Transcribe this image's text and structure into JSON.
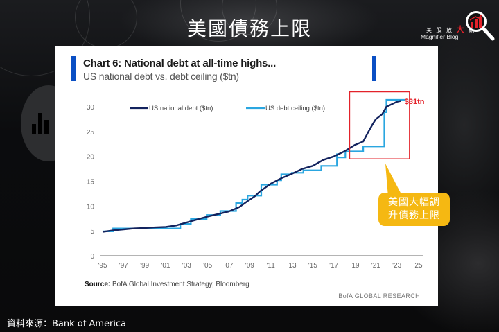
{
  "page": {
    "title": "美國債務上限",
    "footer_source": "資料來源：Bank of  America"
  },
  "logo": {
    "cn_text_pre": "美 股 放 ",
    "cn_text_big": "大",
    "cn_text_post": " 鏡",
    "en_text": "Magnifier Blog",
    "icon": "magnifier-bar-chart-icon",
    "colors": {
      "accent": "#e3222a",
      "ring": "#ffffff"
    }
  },
  "card": {
    "title": "Chart 6: National debt at all-time highs...",
    "subtitle": "US national debt vs. debt ceiling ($tn)",
    "source_label": "Source:",
    "source_text": " BofA Global Investment Strategy, Bloomberg",
    "brand": "BofA GLOBAL RESEARCH"
  },
  "callout": {
    "line1": "美國大幅調",
    "line2": "升債務上限",
    "color": "#f5b812"
  },
  "chart_data": {
    "type": "line",
    "title": "Chart 6: National debt at all-time highs...",
    "subtitle": "US national debt vs. debt ceiling ($tn)",
    "xlabel": "",
    "ylabel": "$tn",
    "xlim": [
      1995,
      2025
    ],
    "ylim": [
      0,
      30
    ],
    "grid": false,
    "legend_position": "top-left",
    "x_tick_labels": [
      "'95",
      "'97",
      "'99",
      "'01",
      "'03",
      "'05",
      "'07",
      "'09",
      "'11",
      "'13",
      "'15",
      "'17",
      "'19",
      "'21",
      "'23",
      "'25"
    ],
    "y_tick_labels": [
      "0",
      "5",
      "10",
      "15",
      "20",
      "25",
      "30"
    ],
    "y_ticks": [
      0,
      5,
      10,
      15,
      20,
      25,
      30
    ],
    "series": [
      {
        "name": "US national debt ($tn)",
        "color": "#13235e",
        "points": [
          [
            1995.0,
            4.8
          ],
          [
            1996.0,
            5.1
          ],
          [
            1997.0,
            5.3
          ],
          [
            1998.0,
            5.5
          ],
          [
            1999.0,
            5.6
          ],
          [
            2000.0,
            5.7
          ],
          [
            2001.0,
            5.8
          ],
          [
            2002.0,
            6.1
          ],
          [
            2003.0,
            6.7
          ],
          [
            2004.0,
            7.3
          ],
          [
            2005.0,
            7.9
          ],
          [
            2006.0,
            8.4
          ],
          [
            2007.0,
            8.9
          ],
          [
            2008.0,
            9.8
          ],
          [
            2008.8,
            11.0
          ],
          [
            2009.5,
            12.0
          ],
          [
            2010.0,
            13.0
          ],
          [
            2011.0,
            14.5
          ],
          [
            2012.0,
            15.6
          ],
          [
            2013.0,
            16.5
          ],
          [
            2014.0,
            17.5
          ],
          [
            2015.0,
            18.1
          ],
          [
            2016.0,
            19.3
          ],
          [
            2017.0,
            20.0
          ],
          [
            2018.0,
            21.0
          ],
          [
            2019.0,
            22.3
          ],
          [
            2019.8,
            23.0
          ],
          [
            2020.3,
            25.0
          ],
          [
            2020.7,
            26.5
          ],
          [
            2021.0,
            27.5
          ],
          [
            2021.6,
            28.5
          ],
          [
            2022.0,
            30.0
          ],
          [
            2022.5,
            30.5
          ],
          [
            2023.0,
            31.0
          ],
          [
            2023.4,
            31.2
          ]
        ]
      },
      {
        "name": "US debt ceiling ($tn)",
        "color": "#2aa6e0",
        "points": [
          [
            1995.0,
            4.9
          ],
          [
            1996.0,
            4.9
          ],
          [
            1996.0,
            5.5
          ],
          [
            2002.4,
            5.5
          ],
          [
            2002.4,
            6.4
          ],
          [
            2003.4,
            6.4
          ],
          [
            2003.4,
            7.4
          ],
          [
            2004.9,
            7.4
          ],
          [
            2004.9,
            8.2
          ],
          [
            2006.2,
            8.2
          ],
          [
            2006.2,
            9.0
          ],
          [
            2007.7,
            9.0
          ],
          [
            2007.7,
            10.6
          ],
          [
            2008.3,
            10.6
          ],
          [
            2008.3,
            11.3
          ],
          [
            2008.8,
            11.3
          ],
          [
            2008.8,
            12.1
          ],
          [
            2010.1,
            12.1
          ],
          [
            2010.1,
            14.3
          ],
          [
            2011.6,
            14.3
          ],
          [
            2011.6,
            15.2
          ],
          [
            2012.0,
            15.2
          ],
          [
            2012.0,
            16.4
          ],
          [
            2013.0,
            16.4
          ],
          [
            2013.0,
            16.7
          ],
          [
            2014.1,
            16.7
          ],
          [
            2014.1,
            17.2
          ],
          [
            2015.8,
            17.2
          ],
          [
            2015.8,
            18.1
          ],
          [
            2017.3,
            18.1
          ],
          [
            2017.3,
            20.6
          ],
          [
            2017.3,
            19.8
          ],
          [
            2018.1,
            19.8
          ],
          [
            2018.1,
            21.0
          ],
          [
            2019.8,
            21.0
          ],
          [
            2019.8,
            22.0
          ],
          [
            2021.8,
            22.0
          ],
          [
            2021.8,
            28.9
          ],
          [
            2022.0,
            28.9
          ],
          [
            2022.0,
            31.4
          ],
          [
            2023.8,
            31.4
          ]
        ]
      }
    ],
    "annotations": [
      {
        "type": "text",
        "text": "$31tn",
        "x": 2023.6,
        "y": 31.0,
        "color": "#e3222a"
      },
      {
        "type": "box",
        "x0": 2018.5,
        "x1": 2024.2,
        "y0": 19.5,
        "y1": 33.0,
        "color": "#e3222a"
      }
    ]
  }
}
